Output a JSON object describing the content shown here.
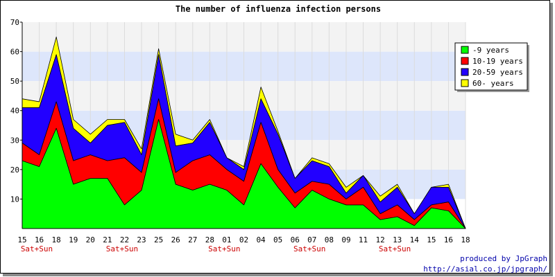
{
  "chart_data": {
    "type": "area",
    "stacked": true,
    "title": "The number of influenza infection persons",
    "categories": [
      "15",
      "16",
      "18",
      "19",
      "20",
      "21",
      "22",
      "23",
      "25",
      "26",
      "27",
      "28",
      "01",
      "02",
      "04",
      "05",
      "06",
      "07",
      "08",
      "09",
      "11",
      "12",
      "13",
      "14",
      "15",
      "16",
      "18"
    ],
    "weekend_labels": [
      "Sat+Sun",
      "",
      "",
      "",
      "",
      "Sat+Sun",
      "",
      "",
      "",
      "",
      "",
      "Sat+Sun",
      "",
      "",
      "",
      "",
      "Sat+Sun",
      "",
      "",
      "",
      "",
      "Sat+Sun",
      "",
      "",
      "",
      "",
      ""
    ],
    "ylim": [
      0,
      70
    ],
    "yticks": [
      10,
      20,
      30,
      40,
      50,
      60,
      70
    ],
    "grid": true,
    "legend_position": "right",
    "series": [
      {
        "name": "-9 years",
        "color": "#00ff00",
        "values": [
          23,
          21,
          34,
          15,
          17,
          17,
          8,
          13,
          37,
          15,
          13,
          15,
          13,
          8,
          22,
          14,
          7,
          13,
          10,
          8,
          8,
          3,
          4,
          1,
          7,
          6,
          0
        ]
      },
      {
        "name": "10-19 years",
        "color": "#ff0000",
        "values": [
          6,
          4,
          9,
          8,
          8,
          6,
          16,
          6,
          7,
          4,
          10,
          10,
          7,
          8,
          14,
          6,
          5,
          3,
          5,
          2,
          6,
          2,
          4,
          2,
          1,
          3,
          0
        ]
      },
      {
        "name": "20-59 years",
        "color": "#2200ff",
        "values": [
          12,
          16,
          16,
          11,
          4,
          12,
          12,
          6,
          15,
          9,
          6,
          11,
          4,
          4,
          8,
          12,
          5,
          7,
          6,
          2,
          4,
          4,
          6,
          2,
          6,
          5,
          0
        ]
      },
      {
        "name": "60- years",
        "color": "#ffff00",
        "values": [
          3,
          2,
          6,
          3,
          3,
          2,
          1,
          2,
          2,
          4,
          1,
          1,
          0,
          1,
          4,
          1,
          0,
          1,
          1,
          2,
          0,
          2,
          1,
          0,
          0,
          1,
          0
        ]
      }
    ]
  },
  "credits": {
    "line1": "produced by JpGraph",
    "line2": "http://asial.co.jp/jpgraph/"
  }
}
